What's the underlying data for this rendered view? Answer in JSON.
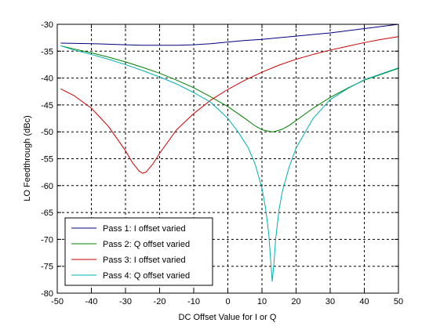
{
  "chart_data": {
    "type": "line",
    "title": "",
    "xlabel": "DC Offset Value for I or Q",
    "ylabel": "LO Feedthrough (dBc)",
    "xlim": [
      -50,
      50
    ],
    "ylim": [
      -80,
      -30
    ],
    "xticks": [
      -50,
      -40,
      -30,
      -20,
      -10,
      0,
      10,
      20,
      30,
      40,
      50
    ],
    "yticks": [
      -30,
      -35,
      -40,
      -45,
      -50,
      -55,
      -60,
      -65,
      -70,
      -75,
      -80
    ],
    "grid": true,
    "legend_position": "bottom-left",
    "series": [
      {
        "name": "Pass 1: I offset varied",
        "color": "#000080",
        "x": [
          -49,
          -40,
          -30,
          -25,
          -20,
          -15,
          -10,
          -5,
          0,
          5,
          10,
          15,
          20,
          25,
          30,
          35,
          40,
          45,
          50
        ],
        "y": [
          -33.5,
          -33.6,
          -33.8,
          -33.9,
          -33.9,
          -33.9,
          -33.8,
          -33.6,
          -33.3,
          -33.0,
          -32.8,
          -32.5,
          -32.2,
          -31.9,
          -31.6,
          -31.2,
          -30.8,
          -30.4,
          -30.0
        ]
      },
      {
        "name": "Pass 2: Q offset varied",
        "color": "#008000",
        "x": [
          -49,
          -45,
          -40,
          -35,
          -30,
          -25,
          -20,
          -15,
          -10,
          -5,
          0,
          5,
          8,
          10,
          12,
          13,
          14,
          16,
          18,
          20,
          25,
          30,
          35,
          40,
          45,
          50
        ],
        "y": [
          -34.0,
          -34.6,
          -35.3,
          -36.1,
          -37.0,
          -38.0,
          -39.1,
          -40.4,
          -41.8,
          -43.5,
          -45.3,
          -47.5,
          -48.9,
          -49.6,
          -49.9,
          -50.0,
          -49.9,
          -49.5,
          -48.8,
          -47.9,
          -45.6,
          -43.6,
          -41.9,
          -40.4,
          -39.3,
          -38.2
        ]
      },
      {
        "name": "Pass 3: I offset varied",
        "color": "#cc0000",
        "x": [
          -49,
          -45,
          -40,
          -35,
          -30,
          -28,
          -26,
          -25,
          -24,
          -22,
          -20,
          -15,
          -10,
          -5,
          0,
          5,
          10,
          15,
          20,
          25,
          30,
          35,
          40,
          45,
          50
        ],
        "y": [
          -42.0,
          -43.3,
          -45.6,
          -49.0,
          -53.5,
          -55.7,
          -57.3,
          -57.7,
          -57.5,
          -56.0,
          -54.0,
          -49.6,
          -46.6,
          -44.1,
          -42.1,
          -40.4,
          -38.9,
          -37.6,
          -36.5,
          -35.6,
          -34.8,
          -34.1,
          -33.4,
          -32.8,
          -32.3
        ]
      },
      {
        "name": "Pass 4: Q offset varied",
        "color": "#00b0b0",
        "x": [
          -49,
          -45,
          -40,
          -35,
          -30,
          -25,
          -20,
          -15,
          -10,
          -5,
          0,
          3,
          6,
          8,
          10,
          11,
          12,
          12.5,
          13,
          13.5,
          14,
          15,
          16,
          18,
          20,
          25,
          30,
          35,
          40,
          45,
          50
        ],
        "y": [
          -34.0,
          -34.8,
          -35.6,
          -36.5,
          -37.5,
          -38.6,
          -39.8,
          -41.1,
          -42.7,
          -44.5,
          -47.5,
          -50.0,
          -53.0,
          -56.0,
          -60.5,
          -64.0,
          -69.0,
          -73.5,
          -77.8,
          -74.5,
          -70.0,
          -64.5,
          -61.0,
          -56.5,
          -53.0,
          -47.5,
          -44.0,
          -42.0,
          -40.3,
          -39.2,
          -38.1
        ]
      }
    ]
  }
}
